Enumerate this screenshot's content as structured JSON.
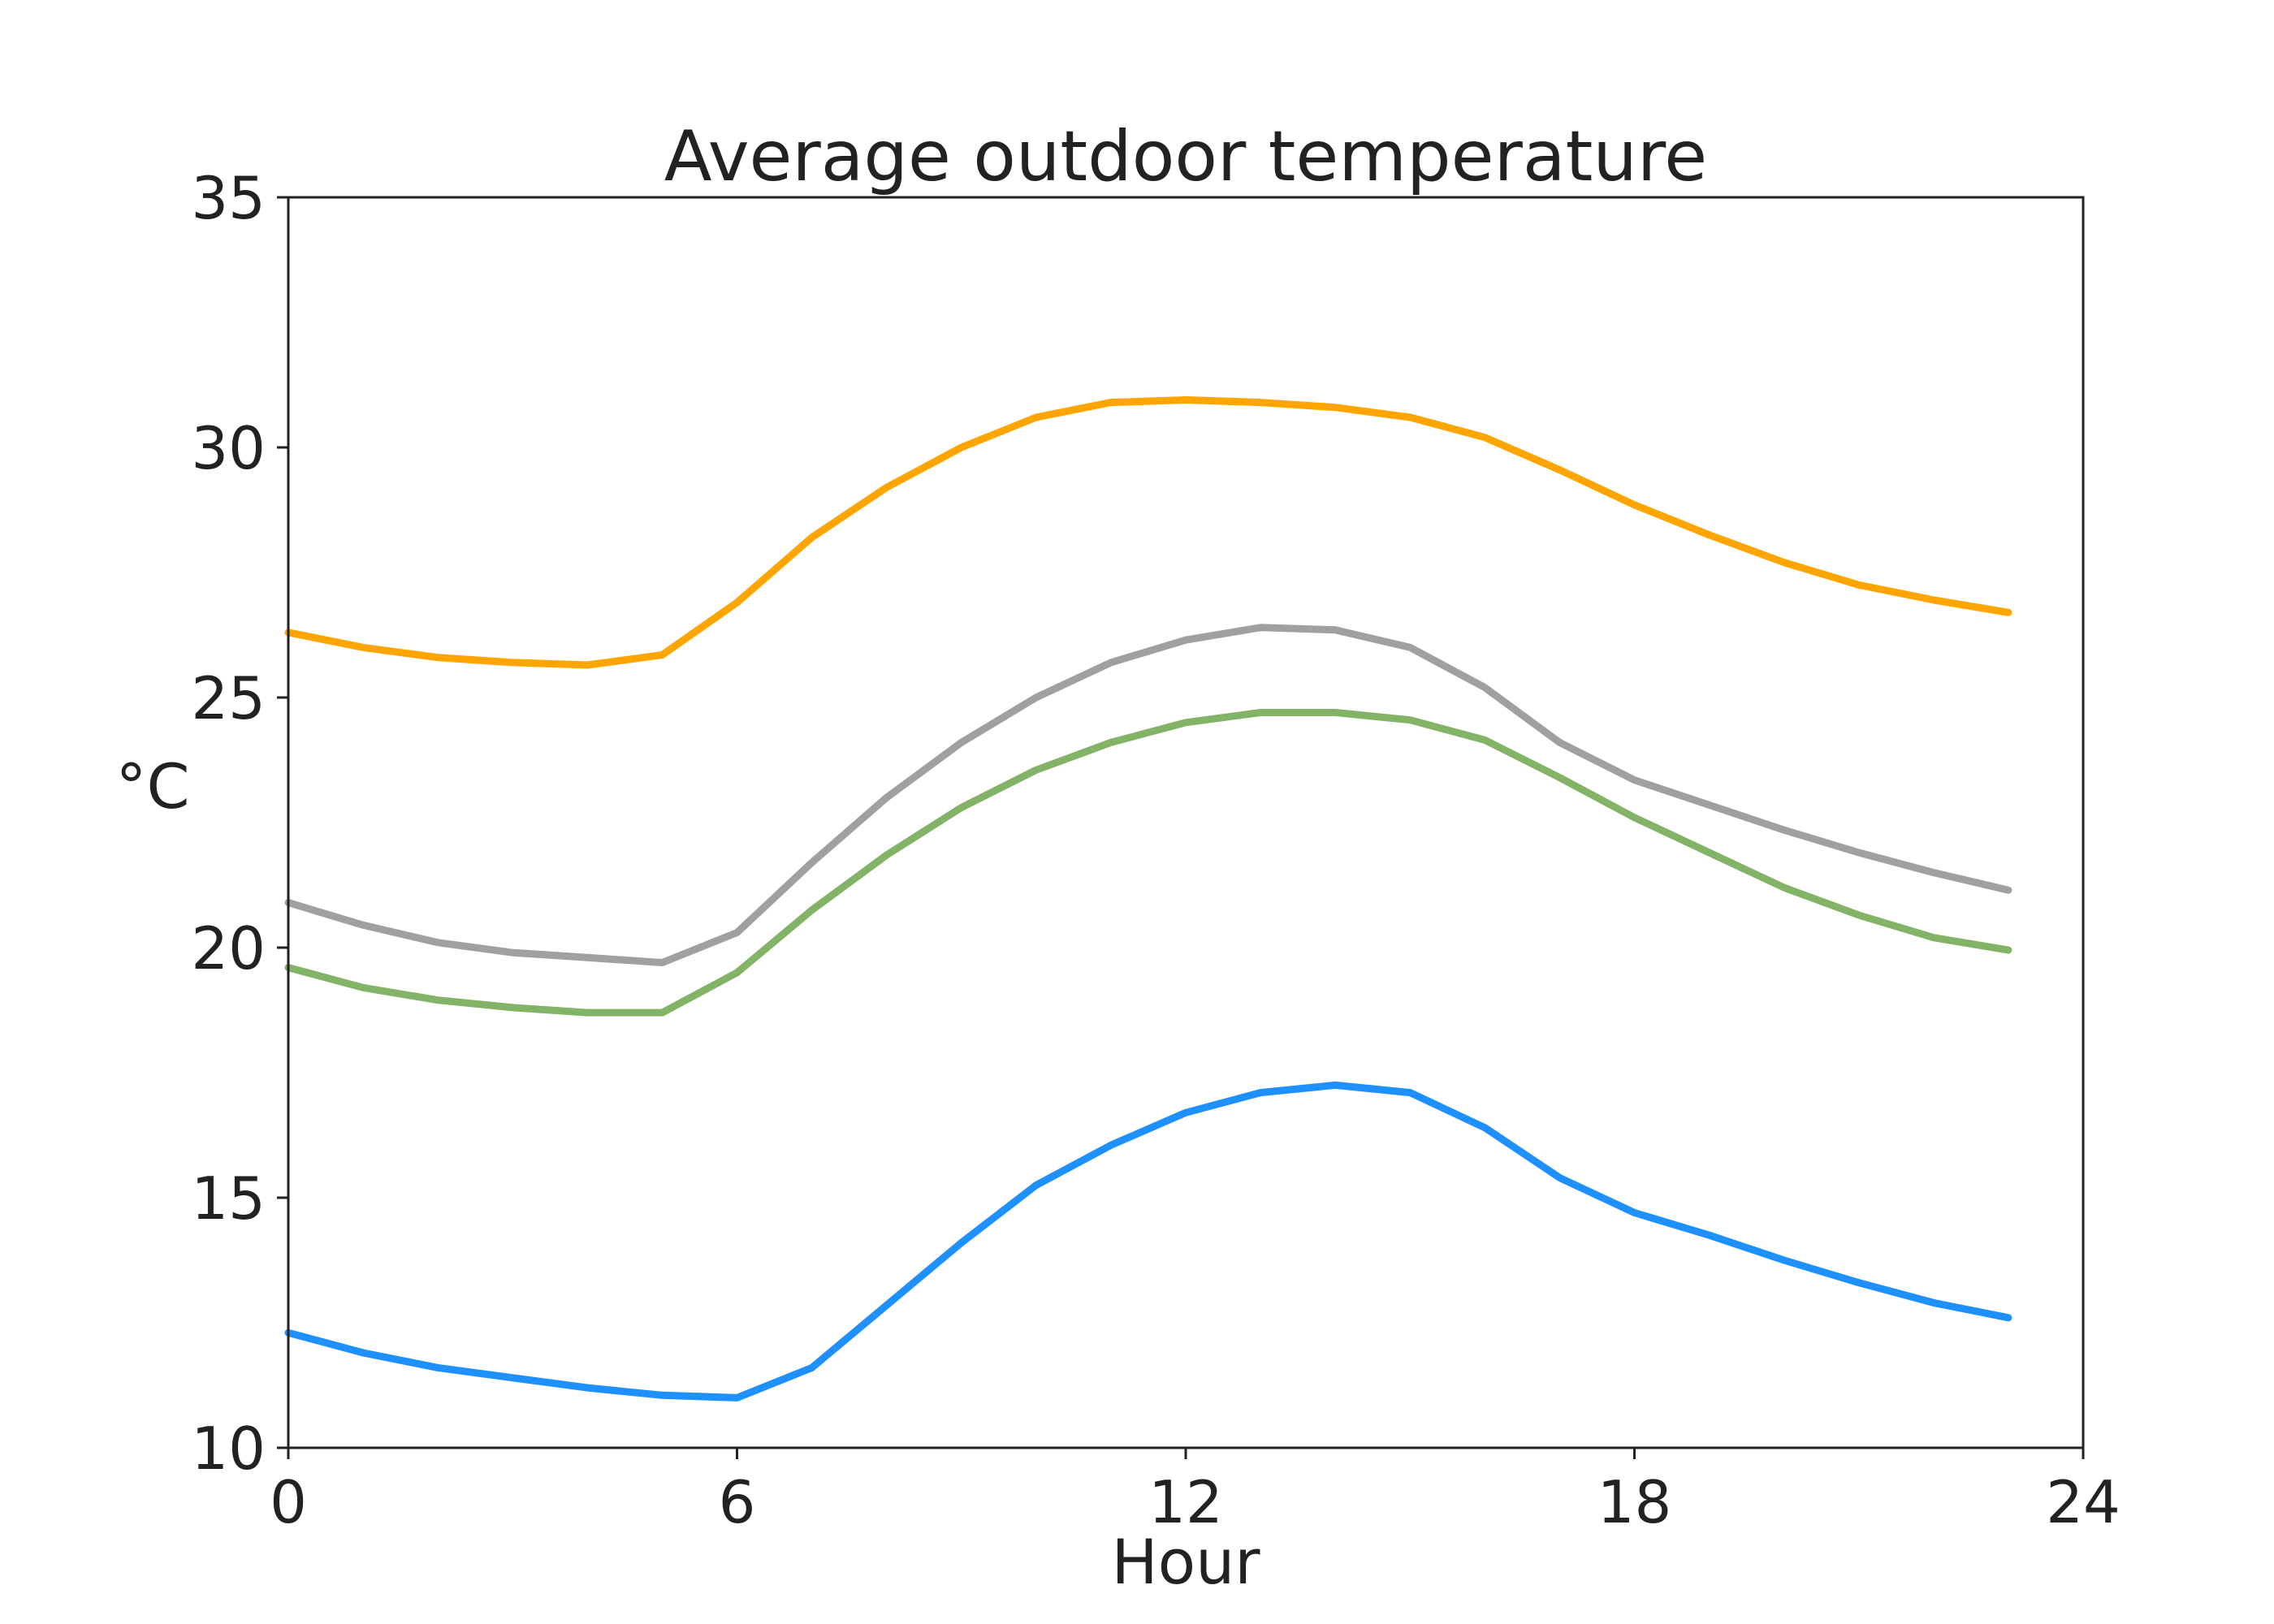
{
  "chart_data": {
    "type": "line",
    "title": "Average outdoor temperature",
    "xlabel": "Hour",
    "ylabel": "°C",
    "xlim": [
      0,
      24
    ],
    "ylim": [
      10,
      35
    ],
    "xticks": [
      0,
      6,
      12,
      18,
      24
    ],
    "yticks": [
      10,
      15,
      20,
      25,
      30,
      35
    ],
    "grid": false,
    "x": [
      0,
      1,
      2,
      3,
      4,
      5,
      6,
      7,
      8,
      9,
      10,
      11,
      12,
      13,
      14,
      15,
      16,
      17,
      18,
      19,
      20,
      21,
      22,
      23
    ],
    "series": [
      {
        "color": "#FFA500",
        "values": [
          26.3,
          26.0,
          25.8,
          25.7,
          25.65,
          25.85,
          26.9,
          28.2,
          29.2,
          30.0,
          30.6,
          30.9,
          30.95,
          30.9,
          30.8,
          30.6,
          30.2,
          29.55,
          28.85,
          28.25,
          27.7,
          27.25,
          26.95,
          26.7
        ]
      },
      {
        "color": "#A0A0A0",
        "values": [
          20.9,
          20.45,
          20.1,
          19.9,
          19.8,
          19.7,
          20.3,
          21.7,
          23.0,
          24.1,
          25.0,
          25.7,
          26.15,
          26.4,
          26.35,
          26.0,
          25.2,
          24.1,
          23.35,
          22.85,
          22.35,
          21.9,
          21.5,
          21.15
        ]
      },
      {
        "color": "#82B366",
        "values": [
          19.6,
          19.2,
          18.95,
          18.8,
          18.7,
          18.7,
          19.5,
          20.75,
          21.85,
          22.8,
          23.55,
          24.1,
          24.5,
          24.7,
          24.7,
          24.55,
          24.15,
          23.4,
          22.6,
          21.9,
          21.2,
          20.65,
          20.2,
          19.95
        ]
      },
      {
        "color": "#1E90FF",
        "values": [
          12.3,
          11.9,
          11.6,
          11.4,
          11.2,
          11.05,
          11.0,
          11.6,
          12.85,
          14.1,
          15.25,
          16.05,
          16.7,
          17.1,
          17.25,
          17.1,
          16.4,
          15.4,
          14.7,
          14.25,
          13.75,
          13.3,
          12.9,
          12.6
        ]
      }
    ]
  }
}
